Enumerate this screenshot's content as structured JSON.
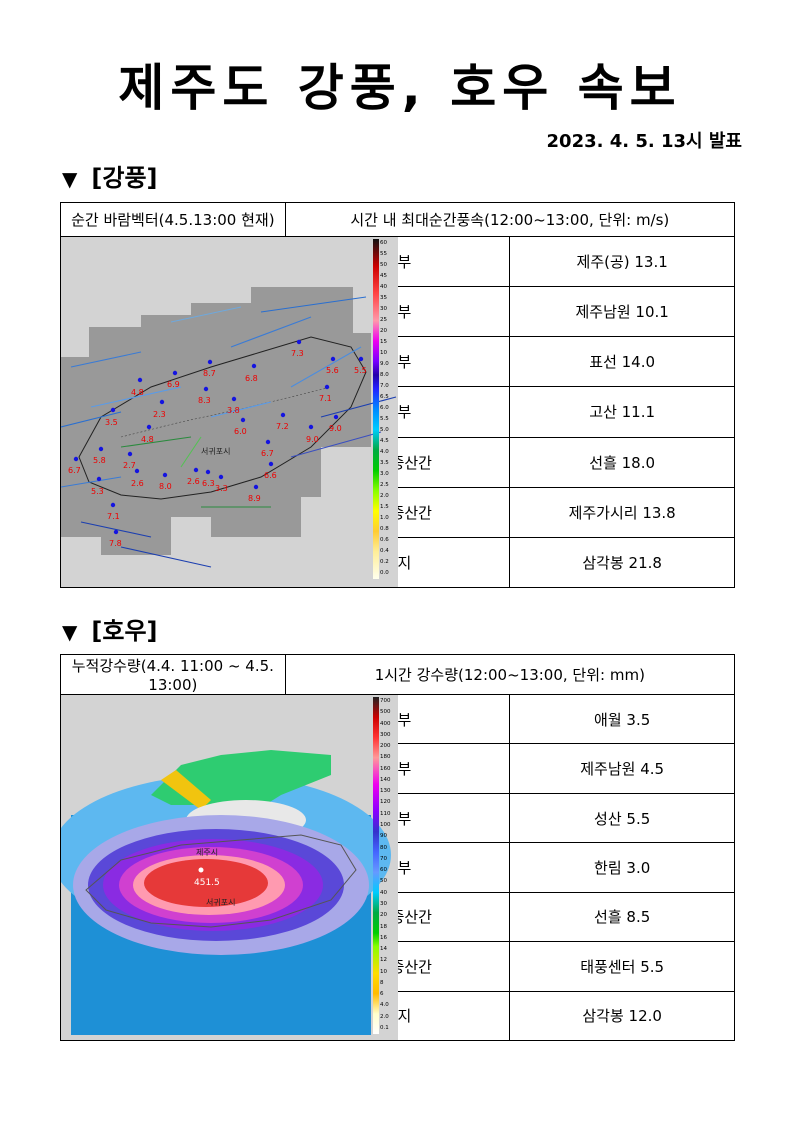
{
  "title": "제주도 강풍, 호우 속보",
  "date": "2023. 4. 5. 13시 발표",
  "wind": {
    "section_title": "[강풍]",
    "map_header": "순간 바람벡터(4.5.13:00 현재)",
    "table_header": "시간 내 최대순간풍속(12:00~13:00, 단위: m/s)",
    "rows": [
      {
        "region": "북부",
        "value": "제주(공) 13.1"
      },
      {
        "region": "남부",
        "value": "제주남원 10.1"
      },
      {
        "region": "동부",
        "value": "표선 14.0"
      },
      {
        "region": "서부",
        "value": "고산 11.1"
      },
      {
        "region": "북부중산간",
        "value": "선흘 18.0"
      },
      {
        "region": "남부중산간",
        "value": "제주가시리 13.8"
      },
      {
        "region": "산지",
        "value": "삼각봉 21.8"
      }
    ],
    "station_values": [
      "4.8",
      "6.9",
      "8.7",
      "6.8",
      "7.3",
      "5.6",
      "5.5",
      "3.5",
      "2.3",
      "8.3",
      "3.8",
      "7.1",
      "4.8",
      "9.0",
      "6.0",
      "7.2",
      "9.0",
      "6.7",
      "5.8",
      "2.7",
      "6.7",
      "2.6",
      "8.0",
      "2.6",
      "6.3",
      "3.3",
      "6.6",
      "8.9",
      "5.3",
      "7.1",
      "7.8",
      "서귀포시"
    ],
    "colorbar_labels": [
      "60",
      "55",
      "50",
      "45",
      "40",
      "35",
      "30",
      "25",
      "20",
      "15",
      "10",
      "9.0",
      "8.0",
      "7.0",
      "6.5",
      "6.0",
      "5.5",
      "5.0",
      "4.5",
      "4.0",
      "3.5",
      "3.0",
      "2.5",
      "2.0",
      "1.5",
      "1.0",
      "0.8",
      "0.6",
      "0.4",
      "0.2",
      "0.0"
    ]
  },
  "rain": {
    "section_title": "[호우]",
    "map_header": "누적강수량(4.4. 11:00 ~ 4.5. 13:00)",
    "table_header": "1시간 강수량(12:00~13:00, 단위: mm)",
    "rows": [
      {
        "region": "북부",
        "value": "애월 3.5"
      },
      {
        "region": "남부",
        "value": "제주남원 4.5"
      },
      {
        "region": "동부",
        "value": "성산 5.5"
      },
      {
        "region": "서부",
        "value": "한림 3.0"
      },
      {
        "region": "북부중산간",
        "value": "선흘 8.5"
      },
      {
        "region": "남부중산간",
        "value": "태풍센터 5.5"
      },
      {
        "region": "산지",
        "value": "삼각봉 12.0"
      }
    ],
    "peak_value": "451.5",
    "city_labels": [
      "제주시",
      "서귀포시"
    ],
    "colorbar_labels": [
      "700",
      "500",
      "400",
      "300",
      "200",
      "180",
      "160",
      "140",
      "130",
      "120",
      "110",
      "100",
      "90",
      "80",
      "70",
      "60",
      "50",
      "40",
      "30",
      "20",
      "18",
      "16",
      "14",
      "12",
      "10",
      "8",
      "6",
      "4.0",
      "2.0",
      "0.1"
    ]
  }
}
